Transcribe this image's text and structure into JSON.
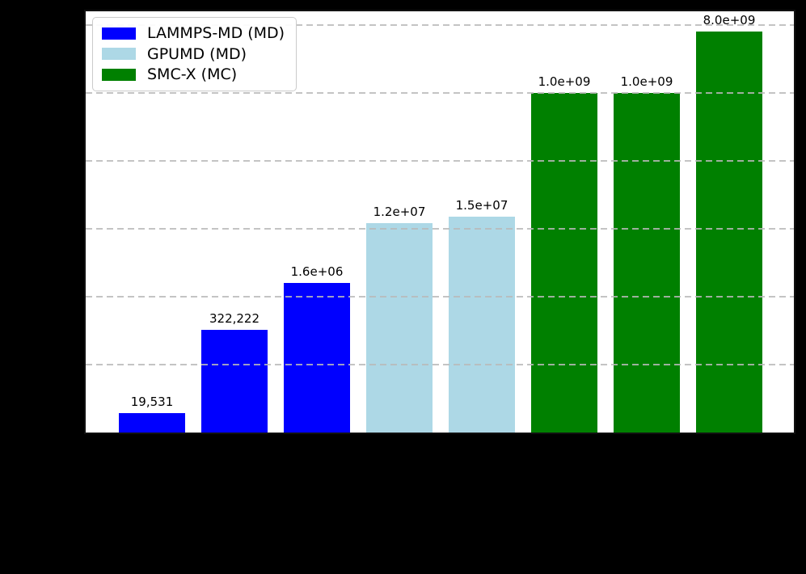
{
  "chart_data": {
    "type": "bar",
    "title": "",
    "xlabel": "",
    "ylabel": "",
    "yscale": "log",
    "ylim": [
      10000,
      16000000000
    ],
    "gridlines_at": [
      100000,
      1000000,
      10000000,
      100000000,
      1000000000,
      10000000000
    ],
    "grid_style": "dashed-horizontal",
    "outside_background": "#000000",
    "plot_background": "#ffffff",
    "x_tick_labels_visible": false,
    "bars": [
      {
        "value": 19531,
        "label": "19,531",
        "series": "LAMMPS-MD (MD)"
      },
      {
        "value": 322222,
        "label": "322,222",
        "series": "LAMMPS-MD (MD)"
      },
      {
        "value": 1600000,
        "label": "1.6e+06",
        "series": "LAMMPS-MD (MD)"
      },
      {
        "value": 12000000,
        "label": "1.2e+07",
        "series": "GPUMD (MD)"
      },
      {
        "value": 15000000,
        "label": "1.5e+07",
        "series": "GPUMD (MD)"
      },
      {
        "value": 1000000000,
        "label": "1.0e+09",
        "series": "SMC-X (MC)"
      },
      {
        "value": 1000000000,
        "label": "1.0e+09",
        "series": "SMC-X (MC)"
      },
      {
        "value": 8000000000,
        "label": "8.0e+09",
        "series": "SMC-X (MC)"
      }
    ],
    "legend": {
      "position": "upper-left",
      "entries": [
        {
          "label": "LAMMPS-MD (MD)",
          "color": "#0000ff"
        },
        {
          "label": "GPUMD (MD)",
          "color": "#add8e6"
        },
        {
          "label": "SMC-X (MC)",
          "color": "#008000"
        }
      ]
    }
  }
}
